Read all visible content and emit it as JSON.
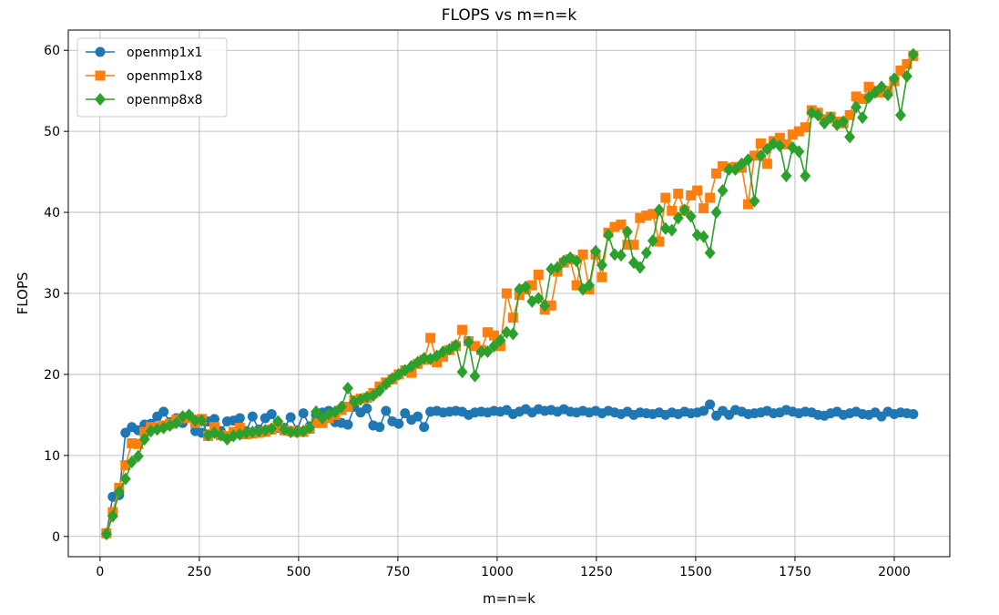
{
  "chart_data": {
    "type": "line",
    "title": "FLOPS vs m=n=k",
    "xlabel": "m=n=k",
    "ylabel": "FLOPS",
    "xlim": [
      -80,
      2140
    ],
    "ylim": [
      -2.5,
      62.5
    ],
    "xticks": [
      0,
      250,
      500,
      750,
      1000,
      1250,
      1500,
      1750,
      2000
    ],
    "yticks": [
      0,
      10,
      20,
      30,
      40,
      50,
      60
    ],
    "grid": true,
    "legend_position": "top-left",
    "x": [
      16,
      32,
      48,
      64,
      80,
      96,
      112,
      128,
      144,
      160,
      176,
      192,
      208,
      224,
      240,
      256,
      272,
      288,
      304,
      320,
      336,
      352,
      368,
      384,
      400,
      416,
      432,
      448,
      464,
      480,
      496,
      512,
      528,
      544,
      560,
      576,
      592,
      608,
      624,
      640,
      656,
      672,
      688,
      704,
      720,
      736,
      752,
      768,
      784,
      800,
      816,
      832,
      848,
      864,
      880,
      896,
      912,
      928,
      944,
      960,
      976,
      992,
      1008,
      1024,
      1040,
      1056,
      1072,
      1088,
      1104,
      1120,
      1136,
      1152,
      1168,
      1184,
      1200,
      1216,
      1232,
      1248,
      1264,
      1280,
      1296,
      1312,
      1328,
      1344,
      1360,
      1376,
      1392,
      1408,
      1424,
      1440,
      1456,
      1472,
      1488,
      1504,
      1520,
      1536,
      1552,
      1568,
      1584,
      1600,
      1616,
      1632,
      1648,
      1664,
      1680,
      1696,
      1712,
      1728,
      1744,
      1760,
      1776,
      1792,
      1808,
      1824,
      1840,
      1856,
      1872,
      1888,
      1904,
      1920,
      1936,
      1952,
      1968,
      1984,
      2000,
      2016,
      2032,
      2048
    ],
    "series": [
      {
        "name": "openmp1x1",
        "color": "#1f77b4",
        "marker": "circle",
        "values": [
          0.3,
          4.9,
          5.1,
          12.8,
          13.5,
          13.1,
          13.8,
          13.9,
          14.8,
          15.4,
          14.1,
          14.6,
          14.0,
          14.9,
          13.0,
          12.8,
          14.2,
          14.5,
          13.0,
          14.2,
          14.3,
          14.6,
          13.0,
          14.8,
          13.2,
          14.6,
          15.1,
          13.4,
          13.4,
          14.7,
          13.1,
          15.2,
          13.6,
          15.0,
          15.3,
          15.5,
          14.1,
          14.0,
          13.8,
          16.0,
          15.3,
          15.8,
          13.7,
          13.5,
          15.5,
          14.2,
          13.9,
          15.2,
          14.4,
          14.8,
          13.5,
          15.4,
          15.5,
          15.3,
          15.4,
          15.5,
          15.4,
          15.0,
          15.3,
          15.4,
          15.3,
          15.5,
          15.4,
          15.6,
          15.1,
          15.4,
          15.7,
          15.3,
          15.7,
          15.5,
          15.6,
          15.4,
          15.7,
          15.4,
          15.3,
          15.5,
          15.3,
          15.5,
          15.2,
          15.5,
          15.3,
          15.1,
          15.4,
          15.0,
          15.3,
          15.2,
          15.1,
          15.3,
          15.0,
          15.3,
          15.1,
          15.4,
          15.2,
          15.3,
          15.5,
          16.3,
          14.9,
          15.5,
          15.0,
          15.6,
          15.4,
          15.1,
          15.2,
          15.3,
          15.5,
          15.2,
          15.3,
          15.6,
          15.4,
          15.2,
          15.4,
          15.3,
          15.0,
          14.9,
          15.2,
          15.4,
          15.0,
          15.2,
          15.4,
          15.1,
          15.0,
          15.3,
          14.8,
          15.4,
          15.1,
          15.3,
          15.2,
          15.1
        ]
      },
      {
        "name": "openmp1x8",
        "color": "#ff7f0e",
        "marker": "square",
        "values": [
          0.4,
          3.0,
          6.0,
          8.8,
          11.5,
          11.4,
          12.9,
          13.5,
          13.5,
          13.7,
          13.9,
          14.4,
          14.6,
          14.6,
          14.0,
          14.5,
          12.4,
          13.5,
          12.5,
          12.4,
          12.9,
          13.4,
          12.6,
          12.7,
          12.8,
          12.9,
          13.2,
          13.5,
          13.1,
          13.0,
          12.9,
          12.9,
          13.3,
          14.0,
          14.0,
          14.6,
          15.0,
          15.6,
          16.0,
          16.8,
          17.0,
          17.1,
          17.7,
          18.5,
          19.0,
          19.4,
          20.0,
          20.5,
          20.2,
          21.3,
          21.8,
          24.5,
          21.5,
          22.2,
          23.0,
          23.5,
          25.5,
          24.1,
          23.5,
          23.0,
          25.2,
          24.8,
          23.5,
          30.0,
          27.0,
          29.8,
          30.5,
          31.0,
          32.3,
          28.0,
          28.5,
          32.7,
          33.8,
          34.2,
          31.0,
          34.8,
          30.5,
          34.8,
          32.0,
          37.5,
          38.2,
          38.5,
          36.0,
          36.0,
          39.3,
          39.6,
          39.8,
          36.4,
          41.8,
          40.2,
          42.3,
          40.2,
          42.1,
          42.7,
          40.5,
          41.8,
          44.8,
          45.7,
          45.5,
          45.6,
          45.5,
          41.0,
          47.0,
          48.5,
          46.0,
          48.8,
          49.2,
          48.4,
          49.6,
          50.0,
          50.5,
          52.6,
          52.3,
          51.5,
          51.8,
          51.2,
          51.0,
          52.0,
          54.3,
          54.0,
          55.5,
          55.0,
          54.8,
          55.0,
          56.2,
          57.5,
          58.3,
          59.3
        ]
      },
      {
        "name": "openmp8x8",
        "color": "#2ca02c",
        "marker": "diamond",
        "values": [
          0.3,
          2.5,
          5.5,
          7.1,
          9.2,
          9.9,
          12.0,
          13.0,
          13.2,
          13.4,
          13.7,
          14.0,
          14.8,
          15.0,
          14.3,
          14.3,
          12.5,
          12.8,
          12.5,
          12.0,
          12.4,
          12.6,
          12.8,
          12.9,
          13.0,
          13.1,
          13.3,
          14.2,
          13.2,
          12.9,
          12.9,
          13.0,
          13.4,
          15.4,
          14.6,
          15.1,
          15.4,
          16.0,
          18.3,
          16.6,
          16.9,
          17.2,
          17.4,
          18.0,
          18.8,
          19.5,
          20.0,
          20.5,
          21.0,
          21.5,
          22.0,
          21.9,
          22.3,
          22.8,
          23.1,
          23.6,
          20.3,
          24.0,
          19.8,
          22.8,
          22.8,
          23.5,
          24.2,
          25.2,
          25.0,
          30.5,
          30.8,
          29.0,
          29.4,
          28.5,
          33.0,
          33.2,
          34.0,
          34.4,
          34.0,
          30.5,
          31.0,
          35.2,
          33.5,
          37.2,
          34.8,
          34.7,
          37.6,
          33.8,
          33.2,
          35.0,
          36.5,
          40.3,
          38.0,
          37.8,
          39.3,
          40.3,
          39.5,
          37.2,
          37.0,
          35.0,
          40.0,
          42.7,
          45.3,
          45.3,
          46.0,
          46.5,
          41.4,
          47.0,
          47.8,
          48.5,
          48.2,
          44.5,
          48.0,
          47.5,
          44.5,
          52.3,
          52.0,
          51.0,
          51.7,
          50.8,
          51.2,
          49.3,
          53.0,
          51.7,
          54.2,
          54.8,
          55.5,
          54.5,
          56.5,
          52.0,
          56.8,
          59.5
        ]
      }
    ]
  }
}
